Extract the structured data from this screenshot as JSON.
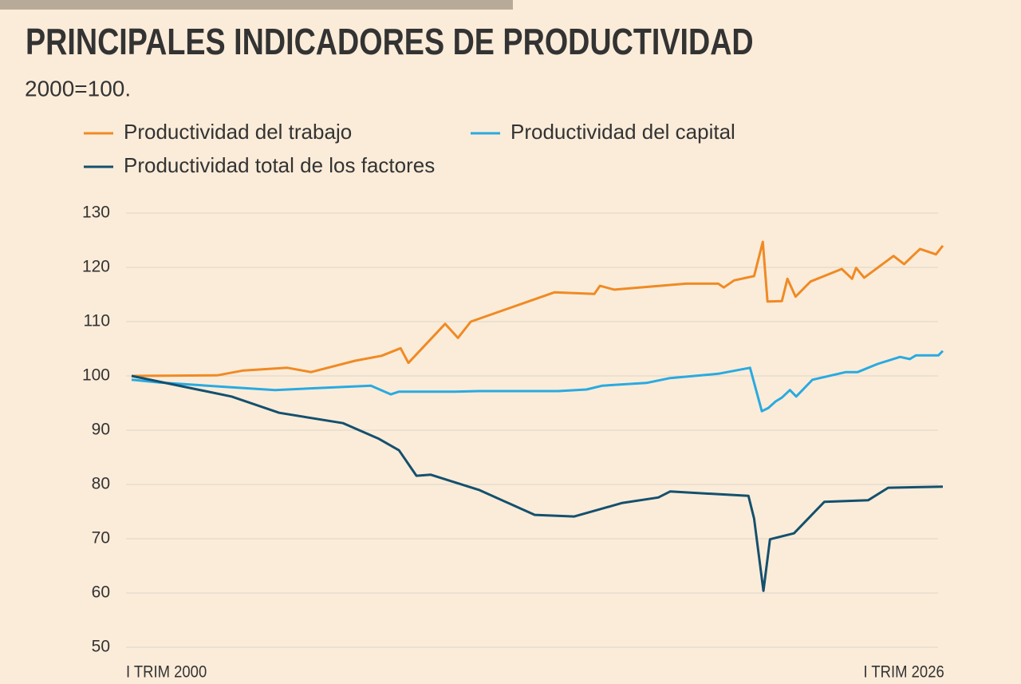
{
  "chart_data": {
    "type": "line",
    "title": "PRINCIPALES INDICADORES DE PRODUCTIVIDAD",
    "subtitle": "2000=100.",
    "xlim": [
      2000,
      2026
    ],
    "xticks": [
      {
        "value": 2000,
        "label": "I TRIM 2000"
      },
      {
        "value": 2026,
        "label": "I TRIM 2026"
      }
    ],
    "ylim": [
      50,
      130
    ],
    "yticks": [
      50,
      60,
      70,
      80,
      90,
      100,
      110,
      120,
      130
    ],
    "grid": true,
    "series": [
      {
        "name": "Productividad del trabajo",
        "color": "#f08a24",
        "x": [
          2000,
          2002.74,
          2003.58,
          2004.99,
          2005.75,
          2007.16,
          2008.01,
          2008.62,
          2008.87,
          2010.05,
          2010.46,
          2010.87,
          2013.55,
          2014.83,
          2015.01,
          2015.47,
          2017.77,
          2018.8,
          2018.98,
          2019.31,
          2019.95,
          2020.23,
          2020.38,
          2020.84,
          2021.02,
          2021.28,
          2021.76,
          2022.76,
          2023.09,
          2023.22,
          2023.48,
          2024.42,
          2024.76,
          2025.27,
          2025.78,
          2026
        ],
        "values": [
          100,
          100.1,
          101,
          101.5,
          100.7,
          102.8,
          103.7,
          105.1,
          102.4,
          109.6,
          107,
          110,
          115.4,
          115.1,
          116.6,
          115.9,
          117,
          117,
          116.3,
          117.6,
          118.4,
          124.7,
          113.7,
          113.8,
          117.9,
          114.6,
          117.4,
          119.7,
          117.9,
          119.9,
          118.1,
          122.1,
          120.6,
          123.4,
          122.4,
          124
        ]
      },
      {
        "name": "Productividad del capital",
        "color": "#29aae1",
        "x": [
          2000,
          2000.9,
          2003.2,
          2004.6,
          2007.67,
          2008.31,
          2008.57,
          2010.36,
          2011.13,
          2013.68,
          2014.58,
          2015.09,
          2016.5,
          2017.26,
          2018.8,
          2019.82,
          2020.2,
          2020.41,
          2020.64,
          2020.84,
          2021.1,
          2021.3,
          2021.82,
          2022.89,
          2023.27,
          2023.91,
          2024.63,
          2024.94,
          2025.14,
          2025.86,
          2026
        ],
        "values": [
          99.3,
          98.8,
          97.9,
          97.4,
          98.2,
          96.6,
          97.1,
          97.1,
          97.2,
          97.2,
          97.5,
          98.2,
          98.7,
          99.6,
          100.4,
          101.5,
          93.5,
          94.1,
          95.3,
          96,
          97.4,
          96.2,
          99.3,
          100.7,
          100.7,
          102.2,
          103.5,
          103.1,
          103.8,
          103.8,
          104.6
        ]
      },
      {
        "name": "Productividad total de los factores",
        "color": "#14506e",
        "x": [
          2000,
          2003.2,
          2004.73,
          2006.78,
          2007.93,
          2008.57,
          2009.13,
          2009.59,
          2010.36,
          2011.13,
          2012.92,
          2014.19,
          2015.73,
          2016.88,
          2017.26,
          2019.77,
          2019.95,
          2020.25,
          2020.46,
          2021.23,
          2022.2,
          2023.61,
          2024.25,
          2026
        ],
        "values": [
          100,
          96.2,
          93.2,
          91.3,
          88.4,
          86.3,
          81.6,
          81.8,
          80.4,
          79,
          74.4,
          74.1,
          76.6,
          77.6,
          78.7,
          77.9,
          73.7,
          60.4,
          69.9,
          71,
          76.8,
          77.1,
          79.4,
          79.6
        ]
      }
    ]
  }
}
